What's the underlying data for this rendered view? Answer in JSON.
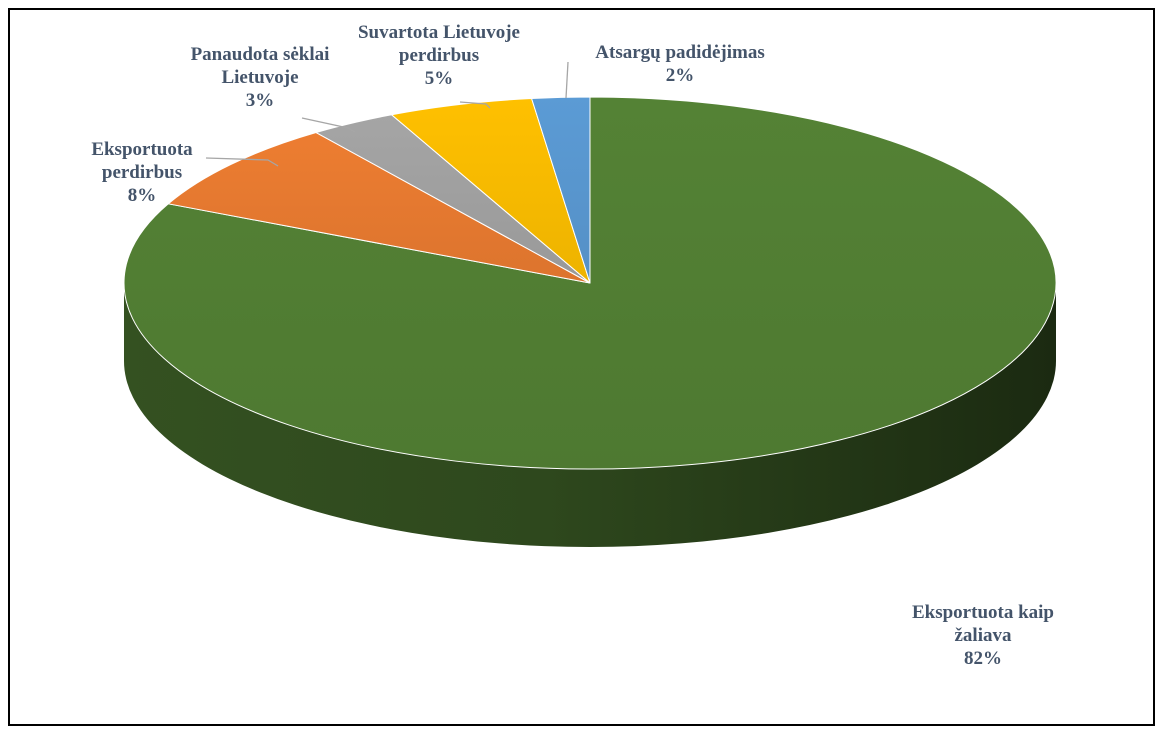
{
  "chart_data": {
    "type": "pie",
    "style": "3d",
    "title": "",
    "slices": [
      {
        "label_lines": [
          "Eksportuota kaip",
          "žaliava"
        ],
        "value": 82,
        "value_label": "82%",
        "color": "#548235"
      },
      {
        "label_lines": [
          "Eksportuota",
          "perdirbus"
        ],
        "value": 8,
        "value_label": "8%",
        "color": "#ed7d31"
      },
      {
        "label_lines": [
          "Panaudota sėklai",
          "Lietuvoje"
        ],
        "value": 3,
        "value_label": "3%",
        "color": "#a5a5a5"
      },
      {
        "label_lines": [
          "Suvartota Lietuvoje",
          "perdirbus"
        ],
        "value": 5,
        "value_label": "5%",
        "color": "#ffc000"
      },
      {
        "label_lines": [
          "Atsargų padidėjimas"
        ],
        "value": 2,
        "value_label": "2%",
        "color": "#5b9bd5"
      }
    ],
    "legend": "none",
    "label_color": "#44546a"
  }
}
